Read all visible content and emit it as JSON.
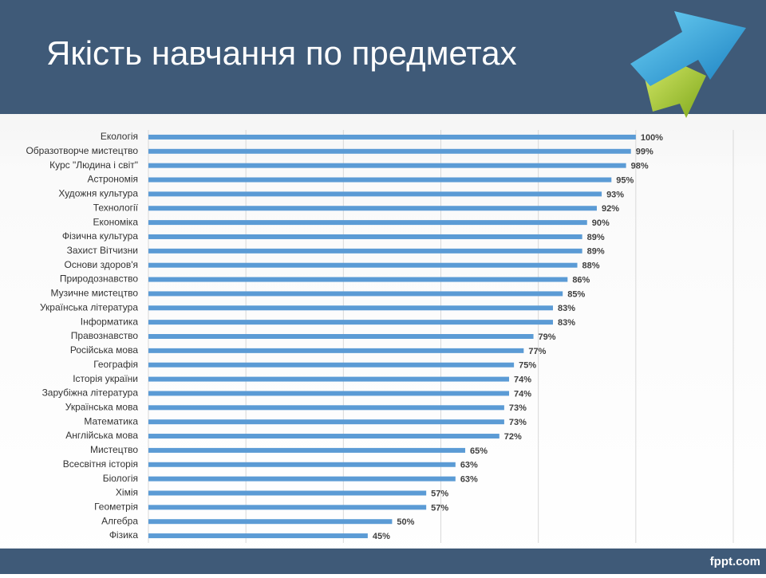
{
  "header": {
    "title": "Якість навчання по предметах"
  },
  "chart_data": {
    "type": "bar",
    "orientation": "horizontal",
    "categories": [
      "Екологія",
      "Образотворче мистецтво",
      "Курс \"Людина і світ\"",
      "Астрономія",
      "Художня культура",
      "Технології",
      "Економіка",
      "Фізична культура",
      "Захист Вітчизни",
      "Основи здоров'я",
      "Природознавство",
      "Музичне мистецтво",
      "Українська література",
      "Інформатика",
      "Правознавство",
      "Російська мова",
      "Географія",
      "Історія україни",
      "Зарубіжна література",
      "Українська мова",
      "Математика",
      "Англійська мова",
      "Мистецтво",
      "Всесвітня історія",
      "Біологія",
      "Хімія",
      "Геометрія",
      "Алгебра",
      "Фізика"
    ],
    "values": [
      100,
      99,
      98,
      95,
      93,
      92,
      90,
      89,
      89,
      88,
      86,
      85,
      83,
      83,
      79,
      77,
      75,
      74,
      74,
      73,
      73,
      72,
      65,
      63,
      63,
      57,
      57,
      50,
      45
    ],
    "value_labels": [
      "100%",
      "99%",
      "98%",
      "95%",
      "93%",
      "92%",
      "90%",
      "89%",
      "89%",
      "88%",
      "86%",
      "85%",
      "83%",
      "83%",
      "79%",
      "77%",
      "75%",
      "74%",
      "74%",
      "73%",
      "73%",
      "72%",
      "65%",
      "63%",
      "63%",
      "57%",
      "57%",
      "50%",
      "45%"
    ],
    "color": "#5b9bd5",
    "xlim": [
      0,
      120
    ],
    "xticks": [
      0,
      20,
      40,
      60,
      80,
      100,
      120
    ],
    "grid": true
  },
  "footer": {
    "brand": "fppt.com"
  }
}
